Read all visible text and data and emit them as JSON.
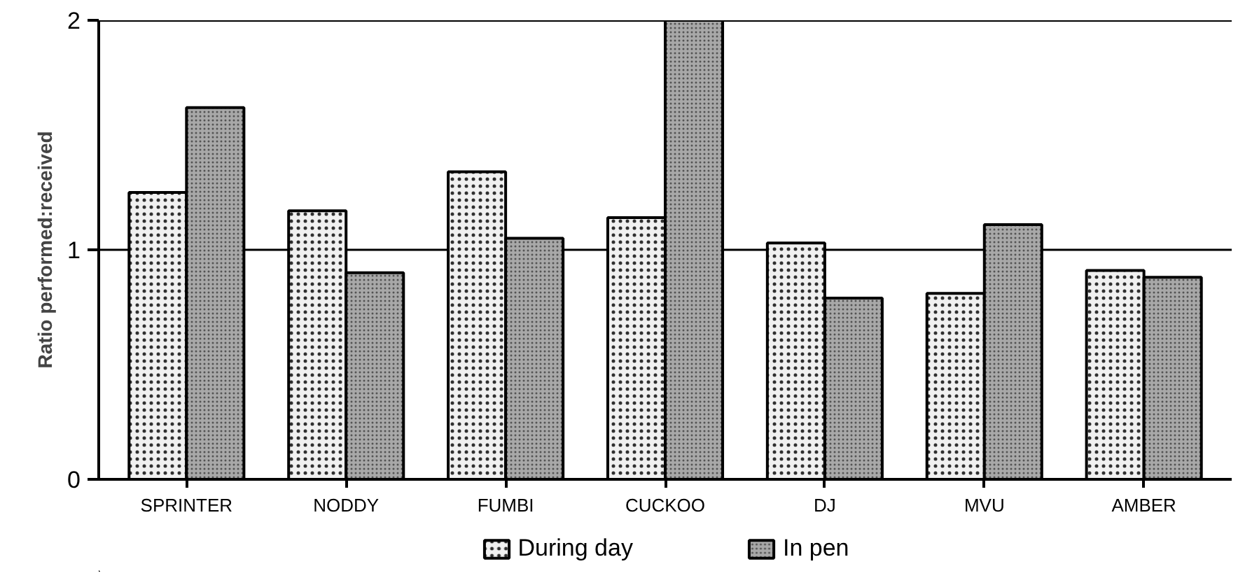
{
  "chart_data": {
    "type": "bar",
    "ylabel": "Ratio performed:received",
    "categories": [
      "SPRINTER",
      "NODDY",
      "FUMBI",
      "CUCKOO",
      "DJ",
      "MVU",
      "AMBER"
    ],
    "series": [
      {
        "name": "During day",
        "color": "#f0f0f0",
        "values": [
          1.25,
          1.17,
          1.34,
          1.14,
          1.03,
          0.81,
          0.91
        ]
      },
      {
        "name": "In pen",
        "color": "#a8a8a8",
        "values": [
          1.62,
          0.9,
          1.05,
          2.0,
          0.79,
          1.11,
          0.88
        ]
      }
    ],
    "ylim": [
      0,
      2
    ],
    "yticks": [
      0,
      1,
      2
    ],
    "grid": "y",
    "legend": "bottom"
  }
}
